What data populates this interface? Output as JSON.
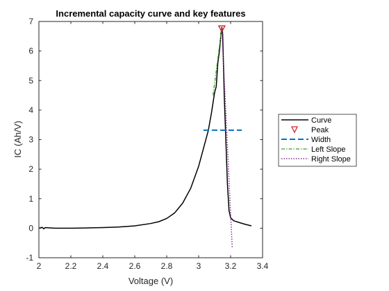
{
  "chart_data": {
    "type": "line",
    "title": "Incremental capacity curve and key features",
    "xlabel": "Voltage (V)",
    "ylabel": "IC (Ah/V)",
    "xlim": [
      2,
      3.4
    ],
    "ylim": [
      -1,
      7
    ],
    "xticks": [
      "2",
      "2.2",
      "2.4",
      "2.6",
      "2.8",
      "3",
      "3.2",
      "3.4"
    ],
    "yticks": [
      "-1",
      "0",
      "1",
      "2",
      "3",
      "4",
      "5",
      "6",
      "7"
    ],
    "xtick_values": [
      2,
      2.2,
      2.4,
      2.6,
      2.8,
      3.0,
      3.2,
      3.4
    ],
    "ytick_values": [
      -1,
      0,
      1,
      2,
      3,
      4,
      5,
      6,
      7
    ],
    "grid": false,
    "legend_position": "outside-right",
    "legend": [
      "Curve",
      "Peak",
      "Width",
      "Left Slope",
      "Right Slope"
    ],
    "series": [
      {
        "style": "solid",
        "color": "#000000",
        "x": [
          2.0,
          2.02,
          2.03,
          2.04,
          2.1,
          2.2,
          2.3,
          2.4,
          2.5,
          2.6,
          2.7,
          2.75,
          2.8,
          2.85,
          2.9,
          2.95,
          3.0,
          3.03,
          3.06,
          3.08,
          3.1,
          3.11,
          3.12,
          3.13,
          3.14,
          3.145,
          3.15,
          3.155,
          3.16,
          3.17,
          3.18,
          3.19,
          3.2,
          3.22,
          3.25,
          3.28,
          3.3,
          3.33
        ],
        "y": [
          0.0,
          0.03,
          -0.02,
          0.02,
          0.0,
          0.0,
          0.01,
          0.02,
          0.04,
          0.08,
          0.16,
          0.22,
          0.33,
          0.52,
          0.85,
          1.35,
          2.1,
          2.7,
          3.3,
          3.9,
          4.6,
          4.8,
          5.6,
          6.0,
          6.6,
          6.8,
          6.6,
          5.6,
          4.5,
          3.0,
          1.5,
          0.6,
          0.35,
          0.25,
          0.2,
          0.15,
          0.12,
          0.08
        ]
      },
      {
        "style": "marker",
        "color": "#d62728",
        "x": [
          3.145
        ],
        "y": [
          6.78
        ]
      },
      {
        "style": "dashed",
        "color": "#0072bd",
        "x": [
          3.03,
          3.27
        ],
        "y": [
          3.32,
          3.32
        ]
      },
      {
        "style": "dashdot",
        "color": "#3a9a1a",
        "x": [
          3.09,
          3.145
        ],
        "y": [
          4.5,
          6.78
        ]
      },
      {
        "style": "dotted",
        "color": "#7e2f8e",
        "x": [
          3.145,
          3.21
        ],
        "y": [
          6.78,
          -0.65
        ]
      }
    ]
  }
}
